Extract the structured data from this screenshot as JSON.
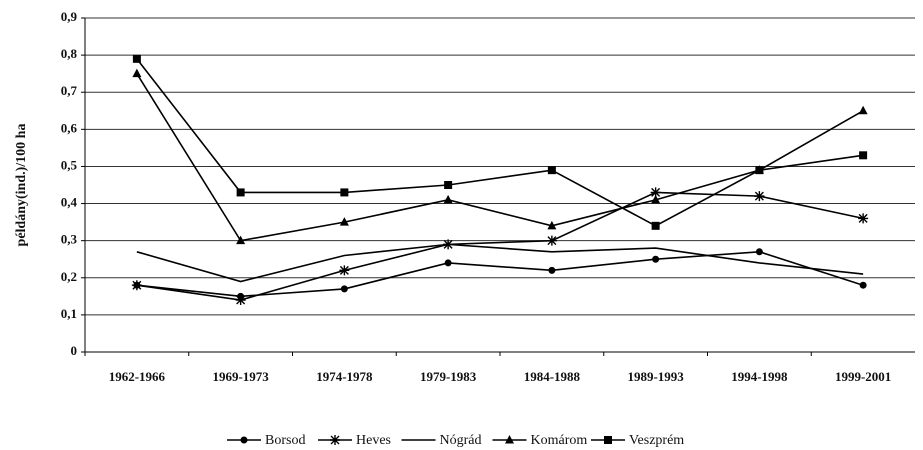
{
  "chart_data": {
    "type": "line",
    "y_label": "példány(ind.)/100 ha",
    "categories": [
      "1962-1966",
      "1969-1973",
      "1974-1978",
      "1979-1983",
      "1984-1988",
      "1989-1993",
      "1994-1998",
      "1999-2001"
    ],
    "series": [
      {
        "name": "Borsod",
        "color": "#000000",
        "marker": "circle",
        "values": [
          0.18,
          0.15,
          0.17,
          0.24,
          0.22,
          0.25,
          0.27,
          0.18
        ]
      },
      {
        "name": "Heves",
        "color": "#000000",
        "marker": "asterisk",
        "values": [
          0.18,
          0.14,
          0.22,
          0.29,
          0.3,
          0.43,
          0.42,
          0.36
        ]
      },
      {
        "name": "Nógrád",
        "color": "#000000",
        "marker": "none",
        "values": [
          0.27,
          0.19,
          0.26,
          0.29,
          0.27,
          0.28,
          0.24,
          0.21
        ]
      },
      {
        "name": "Komárom",
        "color": "#000000",
        "marker": "triangle",
        "values": [
          0.75,
          0.3,
          0.35,
          0.41,
          0.34,
          0.41,
          0.49,
          0.65
        ]
      },
      {
        "name": "Veszprém",
        "color": "#000000",
        "marker": "square",
        "values": [
          0.79,
          0.43,
          0.43,
          0.45,
          0.49,
          0.34,
          0.49,
          0.53
        ]
      }
    ],
    "ylim": [
      0,
      0.9
    ],
    "yticks": [
      0,
      {
        "value": 0.1,
        "label": "0,1"
      },
      {
        "value": 0.2,
        "label": "0,2"
      },
      {
        "value": 0.3,
        "label": "0,3"
      },
      {
        "value": 0.4,
        "label": "0,4"
      },
      {
        "value": 0.5,
        "label": "0,5"
      },
      {
        "value": 0.6,
        "label": "0,6"
      },
      {
        "value": 0.7,
        "label": "0,7"
      },
      {
        "value": 0.8,
        "label": "0,8"
      },
      {
        "value": 0.9,
        "label": "0,9"
      }
    ],
    "grid": true,
    "legend": "bottom"
  }
}
